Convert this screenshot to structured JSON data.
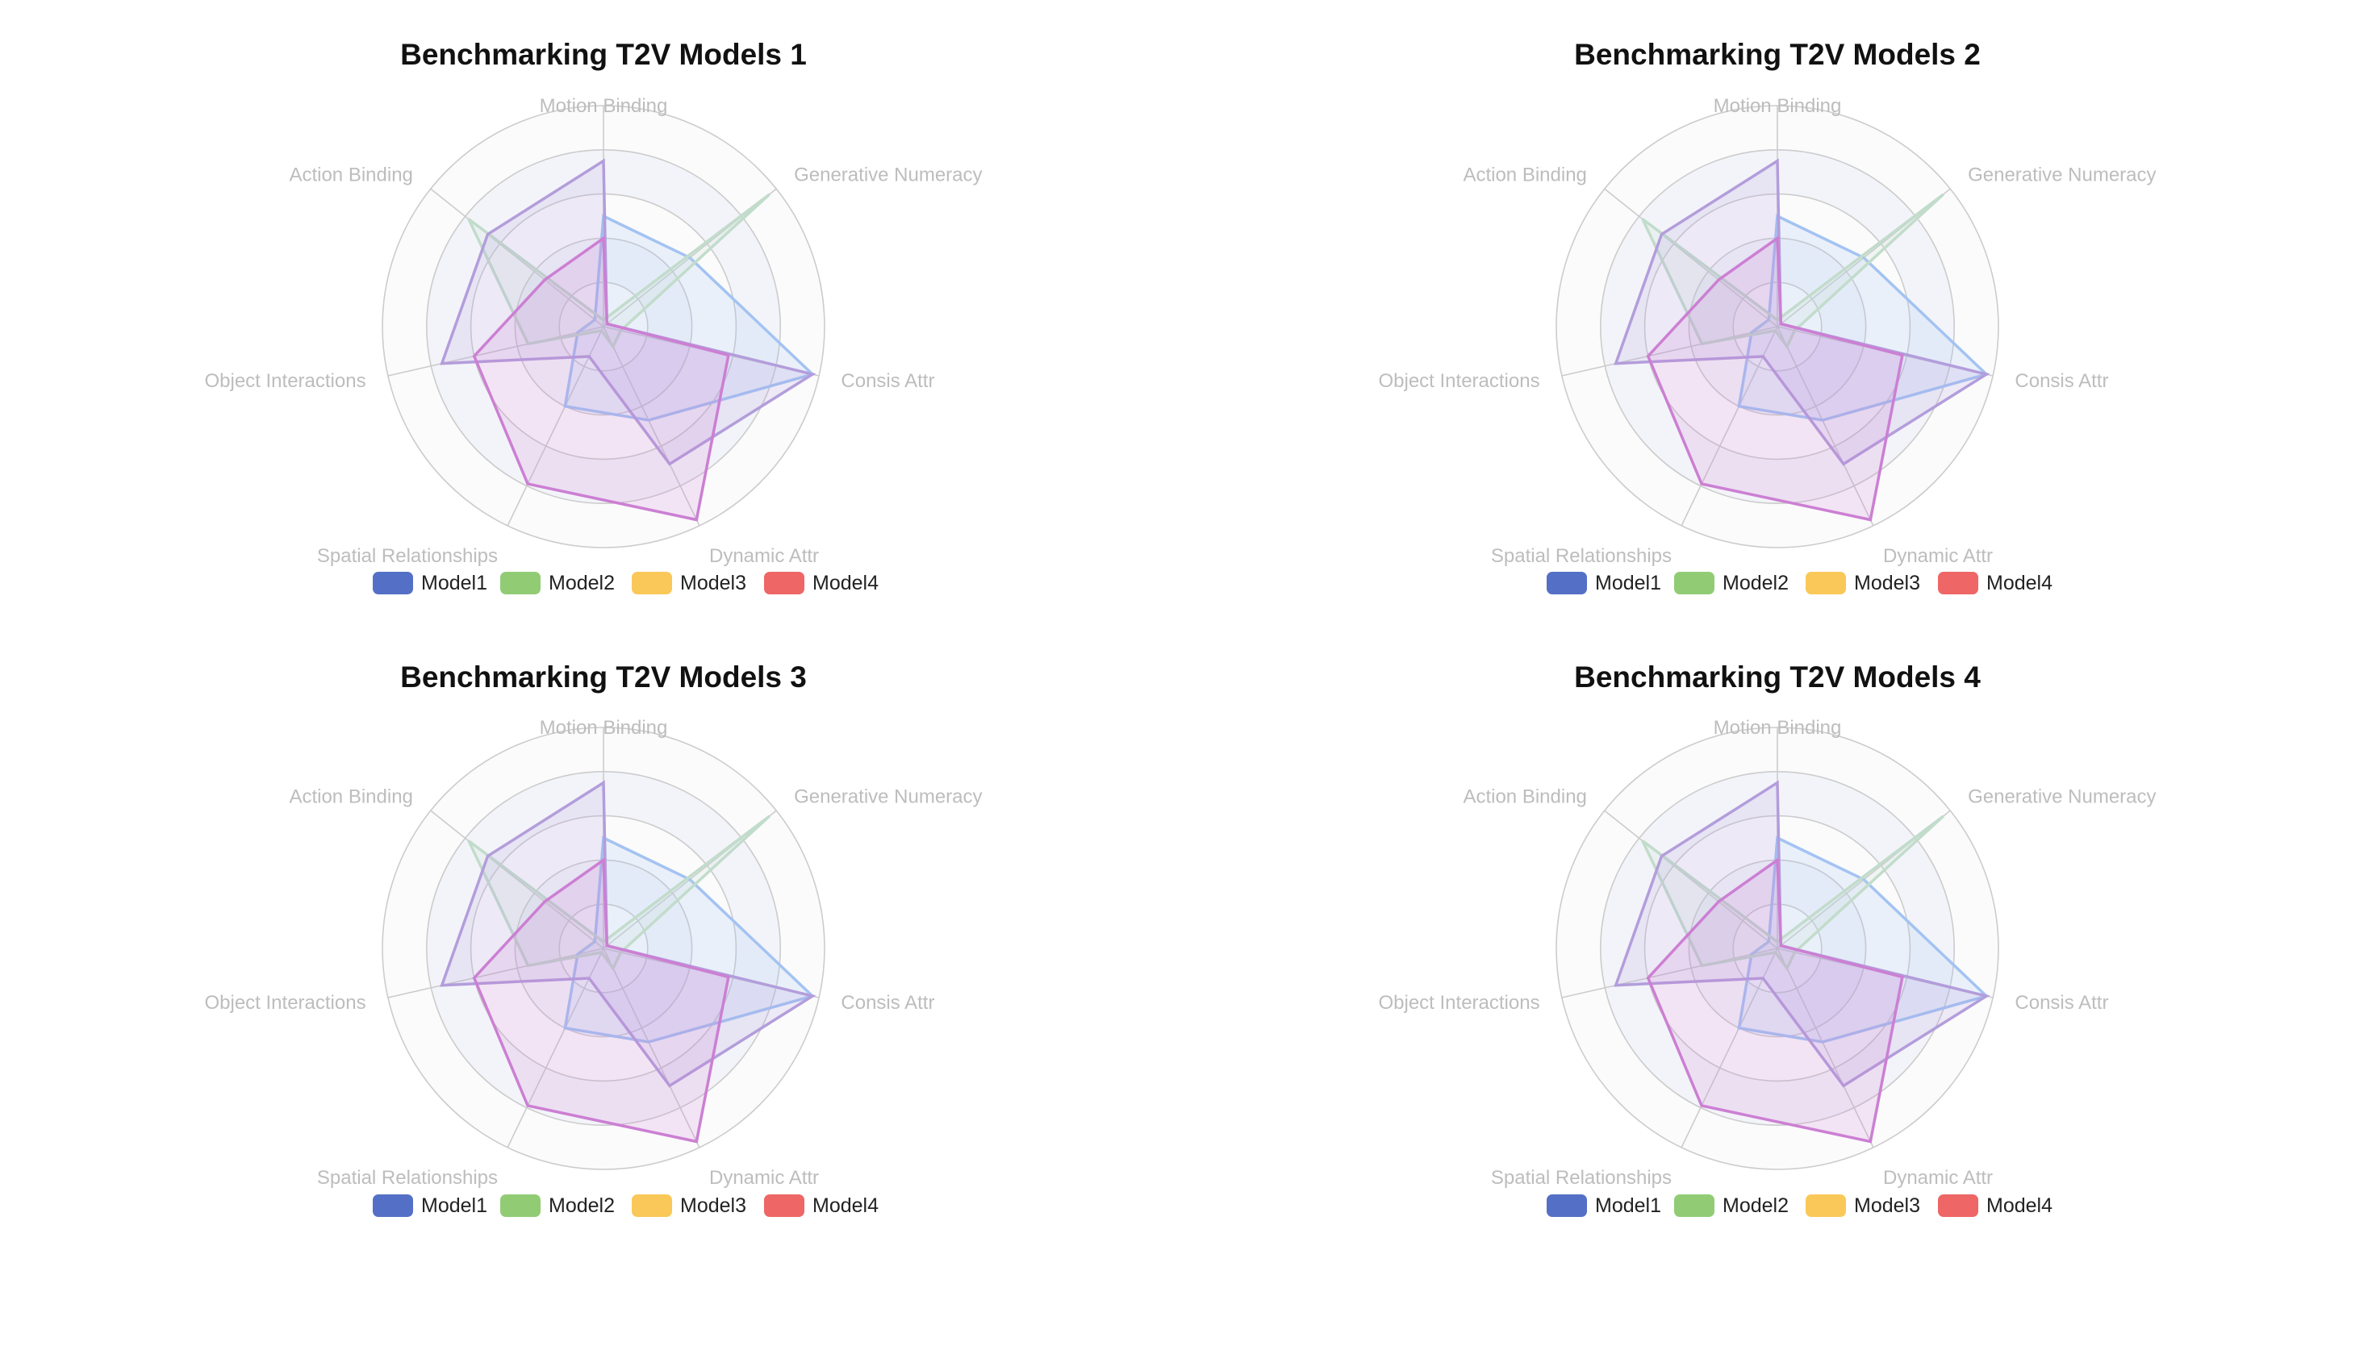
{
  "colors": {
    "model1": "#5470c6",
    "model2": "#91cc75",
    "model3": "#fac858",
    "model4": "#ee6666",
    "ring_band_light": "#f3f4f9",
    "ring_band_lighter": "#fbfbfc",
    "axis_line": "#cccccc",
    "indicator_label": "#bdbdbd",
    "title": "#111111",
    "legend_text": "#222222"
  },
  "chart_data": [
    {
      "type": "radar",
      "title": "Benchmarking T2V Models 1",
      "indicators": [
        "Motion Binding",
        "Generative Numeracy",
        "Consis Attr",
        "Dynamic Attr",
        "Spatial Relationships",
        "Object Interactions",
        "Action Binding"
      ],
      "max": 1.0,
      "series": [
        {
          "name": "Model1",
          "color": "#a3c3f2",
          "values": [
            0.5,
            0.5,
            0.97,
            0.47,
            0.4,
            0.12,
            0.05
          ]
        },
        {
          "name": "Model2",
          "color": "#c2dccb",
          "values": [
            0.03,
            0.96,
            0.08,
            0.1,
            0.02,
            0.35,
            0.78
          ]
        },
        {
          "name": "Model3",
          "color": "#b39ddb",
          "values": [
            0.75,
            0.02,
            0.97,
            0.69,
            0.15,
            0.75,
            0.67
          ]
        },
        {
          "name": "Model4",
          "color": "#cc7fd3",
          "values": [
            0.4,
            0.02,
            0.58,
            0.97,
            0.79,
            0.6,
            0.34
          ]
        }
      ],
      "legend": [
        "Model1",
        "Model2",
        "Model3",
        "Model4"
      ]
    },
    {
      "type": "radar",
      "title": "Benchmarking T2V Models 2",
      "indicators": [
        "Motion Binding",
        "Generative Numeracy",
        "Consis Attr",
        "Dynamic Attr",
        "Spatial Relationships",
        "Object Interactions",
        "Action Binding"
      ],
      "max": 1.0,
      "series": [
        {
          "name": "Model1",
          "color": "#a3c3f2",
          "values": [
            0.5,
            0.5,
            0.97,
            0.47,
            0.4,
            0.12,
            0.05
          ]
        },
        {
          "name": "Model2",
          "color": "#c2dccb",
          "values": [
            0.03,
            0.96,
            0.08,
            0.1,
            0.02,
            0.35,
            0.78
          ]
        },
        {
          "name": "Model3",
          "color": "#b39ddb",
          "values": [
            0.75,
            0.02,
            0.97,
            0.69,
            0.15,
            0.75,
            0.67
          ]
        },
        {
          "name": "Model4",
          "color": "#cc7fd3",
          "values": [
            0.4,
            0.02,
            0.58,
            0.97,
            0.79,
            0.6,
            0.34
          ]
        }
      ],
      "legend": [
        "Model1",
        "Model2",
        "Model3",
        "Model4"
      ]
    },
    {
      "type": "radar",
      "title": "Benchmarking T2V Models 3",
      "indicators": [
        "Motion Binding",
        "Generative Numeracy",
        "Consis Attr",
        "Dynamic Attr",
        "Spatial Relationships",
        "Object Interactions",
        "Action Binding"
      ],
      "max": 1.0,
      "series": [
        {
          "name": "Model1",
          "color": "#a3c3f2",
          "values": [
            0.5,
            0.5,
            0.97,
            0.47,
            0.4,
            0.12,
            0.05
          ]
        },
        {
          "name": "Model2",
          "color": "#c2dccb",
          "values": [
            0.03,
            0.96,
            0.08,
            0.1,
            0.02,
            0.35,
            0.78
          ]
        },
        {
          "name": "Model3",
          "color": "#b39ddb",
          "values": [
            0.75,
            0.02,
            0.97,
            0.69,
            0.15,
            0.75,
            0.67
          ]
        },
        {
          "name": "Model4",
          "color": "#cc7fd3",
          "values": [
            0.4,
            0.02,
            0.58,
            0.97,
            0.79,
            0.6,
            0.34
          ]
        }
      ],
      "legend": [
        "Model1",
        "Model2",
        "Model3",
        "Model4"
      ]
    },
    {
      "type": "radar",
      "title": "Benchmarking T2V Models 4",
      "indicators": [
        "Motion Binding",
        "Generative Numeracy",
        "Consis Attr",
        "Dynamic Attr",
        "Spatial Relationships",
        "Object Interactions",
        "Action Binding"
      ],
      "max": 1.0,
      "series": [
        {
          "name": "Model1",
          "color": "#a3c3f2",
          "values": [
            0.5,
            0.5,
            0.97,
            0.47,
            0.4,
            0.12,
            0.05
          ]
        },
        {
          "name": "Model2",
          "color": "#c2dccb",
          "values": [
            0.03,
            0.96,
            0.08,
            0.1,
            0.02,
            0.35,
            0.78
          ]
        },
        {
          "name": "Model3",
          "color": "#b39ddb",
          "values": [
            0.75,
            0.02,
            0.97,
            0.69,
            0.15,
            0.75,
            0.67
          ]
        },
        {
          "name": "Model4",
          "color": "#cc7fd3",
          "values": [
            0.4,
            0.02,
            0.58,
            0.97,
            0.79,
            0.6,
            0.34
          ]
        }
      ],
      "legend": [
        "Model1",
        "Model2",
        "Model3",
        "Model4"
      ]
    }
  ]
}
